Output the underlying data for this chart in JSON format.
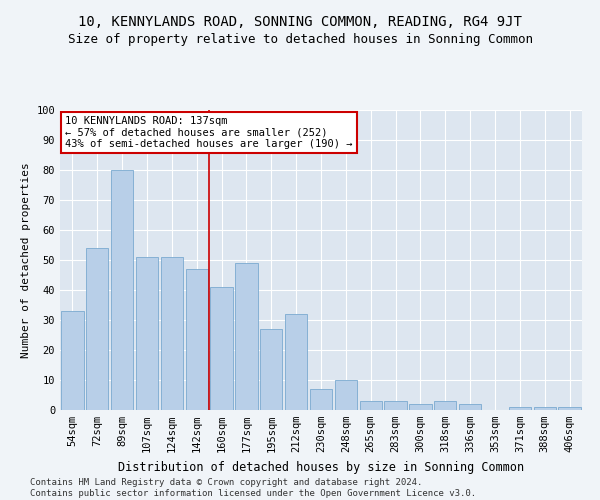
{
  "title": "10, KENNYLANDS ROAD, SONNING COMMON, READING, RG4 9JT",
  "subtitle": "Size of property relative to detached houses in Sonning Common",
  "xlabel": "Distribution of detached houses by size in Sonning Common",
  "ylabel": "Number of detached properties",
  "categories": [
    "54sqm",
    "72sqm",
    "89sqm",
    "107sqm",
    "124sqm",
    "142sqm",
    "160sqm",
    "177sqm",
    "195sqm",
    "212sqm",
    "230sqm",
    "248sqm",
    "265sqm",
    "283sqm",
    "300sqm",
    "318sqm",
    "336sqm",
    "353sqm",
    "371sqm",
    "388sqm",
    "406sqm"
  ],
  "values": [
    33,
    54,
    80,
    51,
    51,
    47,
    41,
    49,
    27,
    32,
    7,
    10,
    3,
    3,
    2,
    3,
    2,
    0,
    1,
    1,
    1
  ],
  "bar_color": "#b8cfe8",
  "bar_edge_color": "#7aaad0",
  "background_color": "#dde6f0",
  "grid_color": "#ffffff",
  "annotation_box_text": "10 KENNYLANDS ROAD: 137sqm\n← 57% of detached houses are smaller (252)\n43% of semi-detached houses are larger (190) →",
  "annotation_box_color": "#ffffff",
  "annotation_box_edge_color": "#cc0000",
  "property_line_x": 5.5,
  "property_line_color": "#cc0000",
  "ylim": [
    0,
    100
  ],
  "yticks": [
    0,
    10,
    20,
    30,
    40,
    50,
    60,
    70,
    80,
    90,
    100
  ],
  "footnote": "Contains HM Land Registry data © Crown copyright and database right 2024.\nContains public sector information licensed under the Open Government Licence v3.0.",
  "title_fontsize": 10,
  "subtitle_fontsize": 9,
  "xlabel_fontsize": 8.5,
  "ylabel_fontsize": 8,
  "tick_fontsize": 7.5,
  "annotation_fontsize": 7.5,
  "footnote_fontsize": 6.5
}
